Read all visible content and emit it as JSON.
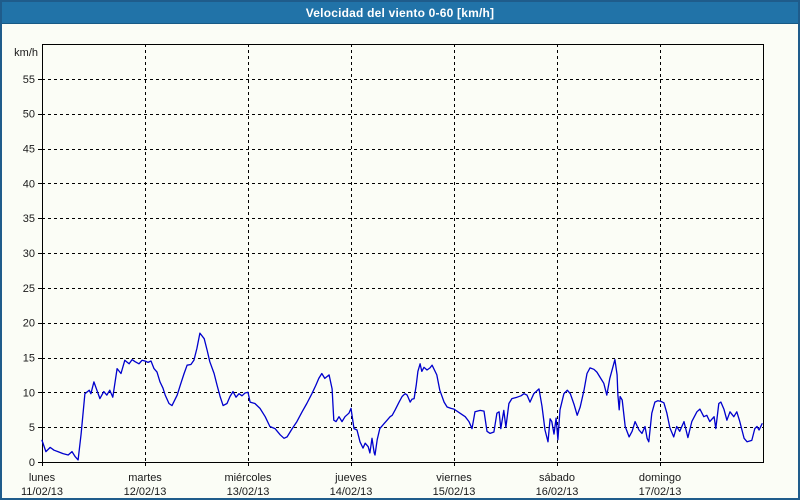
{
  "window": {
    "title": "Velocidad del viento 0-60 [km/h]"
  },
  "colors": {
    "titlebar_bg": "#2173a8",
    "titlebar_text": "#ffffff",
    "page_bg": "#fbfdf6",
    "frame_border": "#1f5c8b",
    "axis": "#000000",
    "grid": "#000000",
    "line": "#0000cd",
    "label_text": "#1a1a1a"
  },
  "chart_data": {
    "type": "line",
    "title": "Velocidad del viento 0-60 [km/h]",
    "ylabel": "km/h",
    "xlabel": "",
    "ylim": [
      0,
      60
    ],
    "y_ticks": [
      0,
      5,
      10,
      15,
      20,
      25,
      30,
      35,
      40,
      45,
      50,
      55
    ],
    "grid": "dashed",
    "legend": "none",
    "x_range_hours": [
      0,
      168
    ],
    "x_days": [
      {
        "name": "lunes",
        "date": "11/02/13"
      },
      {
        "name": "martes",
        "date": "12/02/13"
      },
      {
        "name": "miércoles",
        "date": "13/02/13"
      },
      {
        "name": "jueves",
        "date": "14/02/13"
      },
      {
        "name": "viernes",
        "date": "15/02/13"
      },
      {
        "name": "sábado",
        "date": "16/02/13"
      },
      {
        "name": "domingo",
        "date": "17/02/13"
      }
    ],
    "series": [
      {
        "name": "velocidad del viento",
        "units": "km/h",
        "color": "#0000cd",
        "points": [
          [
            0.0,
            3.1
          ],
          [
            0.9,
            1.5
          ],
          [
            1.9,
            2.1
          ],
          [
            2.8,
            1.7
          ],
          [
            3.7,
            1.5
          ],
          [
            4.9,
            1.2
          ],
          [
            6.1,
            1.0
          ],
          [
            7.0,
            1.5
          ],
          [
            7.7,
            0.8
          ],
          [
            8.4,
            0.3
          ],
          [
            9.1,
            4.0
          ],
          [
            10.0,
            9.8
          ],
          [
            11.0,
            10.3
          ],
          [
            11.4,
            9.8
          ],
          [
            12.1,
            11.5
          ],
          [
            12.8,
            10.3
          ],
          [
            13.5,
            9.1
          ],
          [
            14.4,
            10.1
          ],
          [
            15.1,
            9.6
          ],
          [
            15.8,
            10.3
          ],
          [
            16.5,
            9.3
          ],
          [
            17.5,
            13.4
          ],
          [
            18.4,
            12.7
          ],
          [
            19.3,
            14.6
          ],
          [
            20.3,
            14.1
          ],
          [
            21.0,
            14.7
          ],
          [
            21.7,
            14.4
          ],
          [
            22.6,
            14.1
          ],
          [
            23.3,
            14.6
          ],
          [
            24.0,
            14.5
          ],
          [
            24.7,
            14.3
          ],
          [
            25.4,
            14.5
          ],
          [
            26.1,
            13.4
          ],
          [
            26.8,
            12.9
          ],
          [
            27.5,
            11.5
          ],
          [
            28.2,
            10.6
          ],
          [
            28.7,
            9.6
          ],
          [
            29.6,
            8.4
          ],
          [
            30.3,
            8.1
          ],
          [
            31.5,
            9.6
          ],
          [
            32.2,
            11.0
          ],
          [
            33.1,
            12.7
          ],
          [
            33.8,
            13.9
          ],
          [
            34.7,
            14.0
          ],
          [
            35.4,
            14.6
          ],
          [
            36.1,
            16.3
          ],
          [
            36.8,
            18.5
          ],
          [
            37.8,
            17.7
          ],
          [
            38.5,
            16.0
          ],
          [
            39.1,
            14.4
          ],
          [
            40.1,
            12.7
          ],
          [
            40.8,
            11.0
          ],
          [
            41.5,
            9.4
          ],
          [
            42.2,
            8.1
          ],
          [
            43.1,
            8.4
          ],
          [
            43.8,
            9.4
          ],
          [
            44.5,
            10.1
          ],
          [
            45.2,
            9.3
          ],
          [
            45.9,
            9.8
          ],
          [
            46.6,
            9.5
          ],
          [
            47.3,
            9.9
          ],
          [
            48.0,
            10.0
          ],
          [
            48.5,
            8.6
          ],
          [
            49.6,
            8.4
          ],
          [
            50.8,
            7.7
          ],
          [
            52.0,
            6.5
          ],
          [
            53.1,
            5.1
          ],
          [
            54.3,
            4.8
          ],
          [
            55.5,
            3.9
          ],
          [
            56.4,
            3.4
          ],
          [
            57.1,
            3.6
          ],
          [
            58.3,
            4.8
          ],
          [
            59.4,
            5.8
          ],
          [
            60.6,
            7.2
          ],
          [
            61.7,
            8.4
          ],
          [
            62.9,
            9.8
          ],
          [
            63.8,
            11.0
          ],
          [
            64.5,
            12.0
          ],
          [
            65.2,
            12.7
          ],
          [
            65.9,
            12.0
          ],
          [
            66.9,
            12.5
          ],
          [
            67.6,
            10.5
          ],
          [
            68.0,
            6.0
          ],
          [
            68.5,
            5.8
          ],
          [
            69.2,
            6.5
          ],
          [
            69.9,
            5.8
          ],
          [
            70.6,
            6.5
          ],
          [
            71.5,
            7.0
          ],
          [
            72.0,
            7.7
          ],
          [
            72.7,
            4.8
          ],
          [
            73.4,
            4.6
          ],
          [
            74.1,
            2.9
          ],
          [
            74.8,
            2.0
          ],
          [
            75.3,
            2.7
          ],
          [
            76.0,
            2.2
          ],
          [
            76.4,
            1.3
          ],
          [
            76.9,
            3.4
          ],
          [
            77.4,
            1.3
          ],
          [
            77.6,
            1.0
          ],
          [
            78.1,
            3.2
          ],
          [
            78.7,
            4.8
          ],
          [
            79.7,
            5.5
          ],
          [
            80.4,
            6.0
          ],
          [
            81.1,
            6.5
          ],
          [
            81.6,
            6.7
          ],
          [
            82.3,
            7.5
          ],
          [
            83.2,
            8.6
          ],
          [
            83.9,
            9.4
          ],
          [
            84.6,
            9.8
          ],
          [
            85.1,
            9.6
          ],
          [
            85.8,
            8.6
          ],
          [
            86.2,
            9.0
          ],
          [
            86.7,
            9.1
          ],
          [
            87.2,
            11.0
          ],
          [
            87.6,
            13.0
          ],
          [
            88.1,
            14.1
          ],
          [
            88.5,
            13.0
          ],
          [
            89.0,
            13.6
          ],
          [
            89.7,
            13.2
          ],
          [
            90.4,
            13.5
          ],
          [
            90.9,
            13.9
          ],
          [
            92.0,
            12.5
          ],
          [
            92.7,
            10.3
          ],
          [
            93.7,
            8.6
          ],
          [
            94.4,
            7.9
          ],
          [
            95.3,
            7.7
          ],
          [
            96.0,
            7.6
          ],
          [
            97.4,
            7.0
          ],
          [
            98.6,
            6.5
          ],
          [
            99.5,
            5.8
          ],
          [
            100.2,
            4.8
          ],
          [
            100.9,
            7.2
          ],
          [
            102.1,
            7.4
          ],
          [
            103.0,
            7.3
          ],
          [
            103.7,
            4.4
          ],
          [
            104.4,
            4.1
          ],
          [
            105.3,
            4.3
          ],
          [
            106.0,
            7.0
          ],
          [
            106.5,
            7.2
          ],
          [
            106.9,
            4.8
          ],
          [
            107.6,
            7.4
          ],
          [
            108.1,
            5.0
          ],
          [
            108.8,
            8.4
          ],
          [
            109.5,
            9.1
          ],
          [
            110.7,
            9.3
          ],
          [
            111.6,
            9.5
          ],
          [
            112.3,
            9.8
          ],
          [
            113.0,
            9.6
          ],
          [
            113.7,
            8.6
          ],
          [
            114.6,
            9.8
          ],
          [
            115.8,
            10.5
          ],
          [
            116.5,
            8.0
          ],
          [
            117.2,
            4.6
          ],
          [
            117.9,
            2.9
          ],
          [
            118.4,
            6.2
          ],
          [
            118.8,
            5.8
          ],
          [
            119.3,
            4.0
          ],
          [
            119.8,
            6.3
          ],
          [
            120.2,
            3.2
          ],
          [
            120.7,
            7.5
          ],
          [
            121.6,
            9.8
          ],
          [
            122.4,
            10.3
          ],
          [
            123.1,
            9.8
          ],
          [
            124.0,
            8.2
          ],
          [
            124.7,
            6.7
          ],
          [
            125.4,
            7.9
          ],
          [
            126.3,
            10.3
          ],
          [
            127.0,
            12.7
          ],
          [
            127.7,
            13.5
          ],
          [
            128.6,
            13.3
          ],
          [
            129.3,
            12.9
          ],
          [
            130.0,
            12.2
          ],
          [
            130.9,
            11.3
          ],
          [
            131.6,
            9.6
          ],
          [
            132.3,
            12.0
          ],
          [
            133.5,
            14.7
          ],
          [
            134.0,
            12.5
          ],
          [
            134.2,
            9.6
          ],
          [
            134.5,
            7.5
          ],
          [
            134.7,
            9.4
          ],
          [
            135.2,
            8.9
          ],
          [
            135.9,
            5.1
          ],
          [
            136.8,
            3.6
          ],
          [
            137.5,
            4.4
          ],
          [
            138.2,
            5.8
          ],
          [
            139.1,
            4.6
          ],
          [
            139.8,
            4.1
          ],
          [
            140.5,
            5.1
          ],
          [
            141.0,
            3.4
          ],
          [
            141.4,
            2.9
          ],
          [
            142.1,
            7.0
          ],
          [
            142.8,
            8.6
          ],
          [
            143.5,
            8.8
          ],
          [
            144.2,
            8.7
          ],
          [
            144.9,
            8.5
          ],
          [
            145.6,
            7.0
          ],
          [
            146.3,
            4.9
          ],
          [
            147.2,
            3.6
          ],
          [
            147.9,
            5.1
          ],
          [
            148.6,
            4.4
          ],
          [
            149.6,
            5.8
          ],
          [
            150.5,
            3.5
          ],
          [
            151.4,
            5.8
          ],
          [
            152.6,
            7.2
          ],
          [
            153.3,
            7.6
          ],
          [
            154.2,
            6.5
          ],
          [
            154.9,
            6.7
          ],
          [
            155.6,
            5.8
          ],
          [
            156.6,
            6.5
          ],
          [
            157.0,
            4.8
          ],
          [
            157.7,
            8.4
          ],
          [
            158.2,
            8.6
          ],
          [
            158.9,
            7.6
          ],
          [
            159.6,
            6.0
          ],
          [
            160.3,
            7.2
          ],
          [
            161.2,
            6.5
          ],
          [
            161.9,
            7.2
          ],
          [
            162.6,
            5.8
          ],
          [
            163.6,
            3.4
          ],
          [
            164.3,
            2.9
          ],
          [
            165.4,
            3.1
          ],
          [
            166.1,
            4.8
          ],
          [
            166.6,
            5.1
          ],
          [
            167.1,
            4.6
          ],
          [
            167.8,
            5.5
          ]
        ]
      }
    ]
  }
}
